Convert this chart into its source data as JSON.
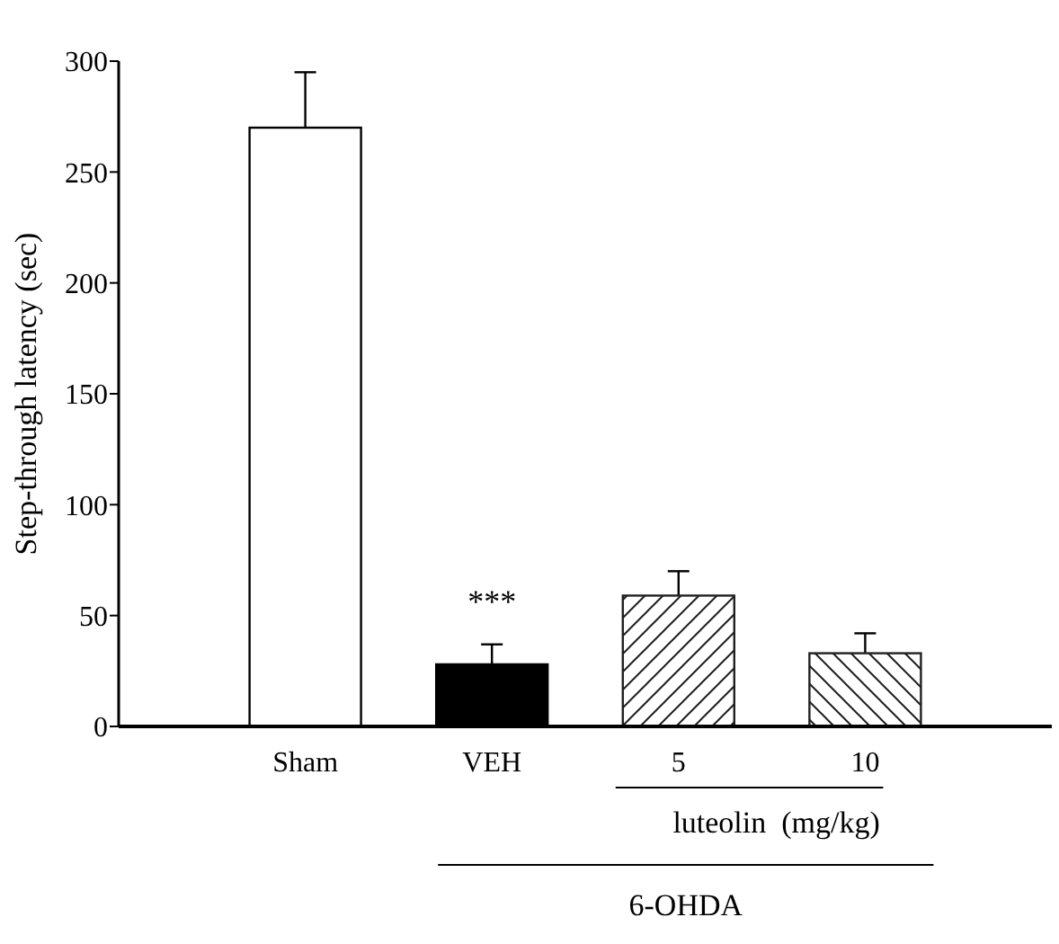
{
  "chart_data": {
    "type": "bar",
    "ylabel": "Step-through latency (sec)",
    "categories": [
      "Sham",
      "VEH",
      "5",
      "10"
    ],
    "values": [
      270,
      28,
      59,
      33
    ],
    "errors": [
      25,
      9,
      11,
      9
    ],
    "colors": [
      "#ffffff",
      "#000000",
      "#202020",
      "#202020"
    ],
    "ylim": [
      0,
      300
    ],
    "yticks": [
      0,
      50,
      100,
      150,
      200,
      250,
      300
    ],
    "grid": false,
    "annotations": [
      "***",
      "luteolin  (mg/kg)",
      "6-OHDA"
    ]
  }
}
